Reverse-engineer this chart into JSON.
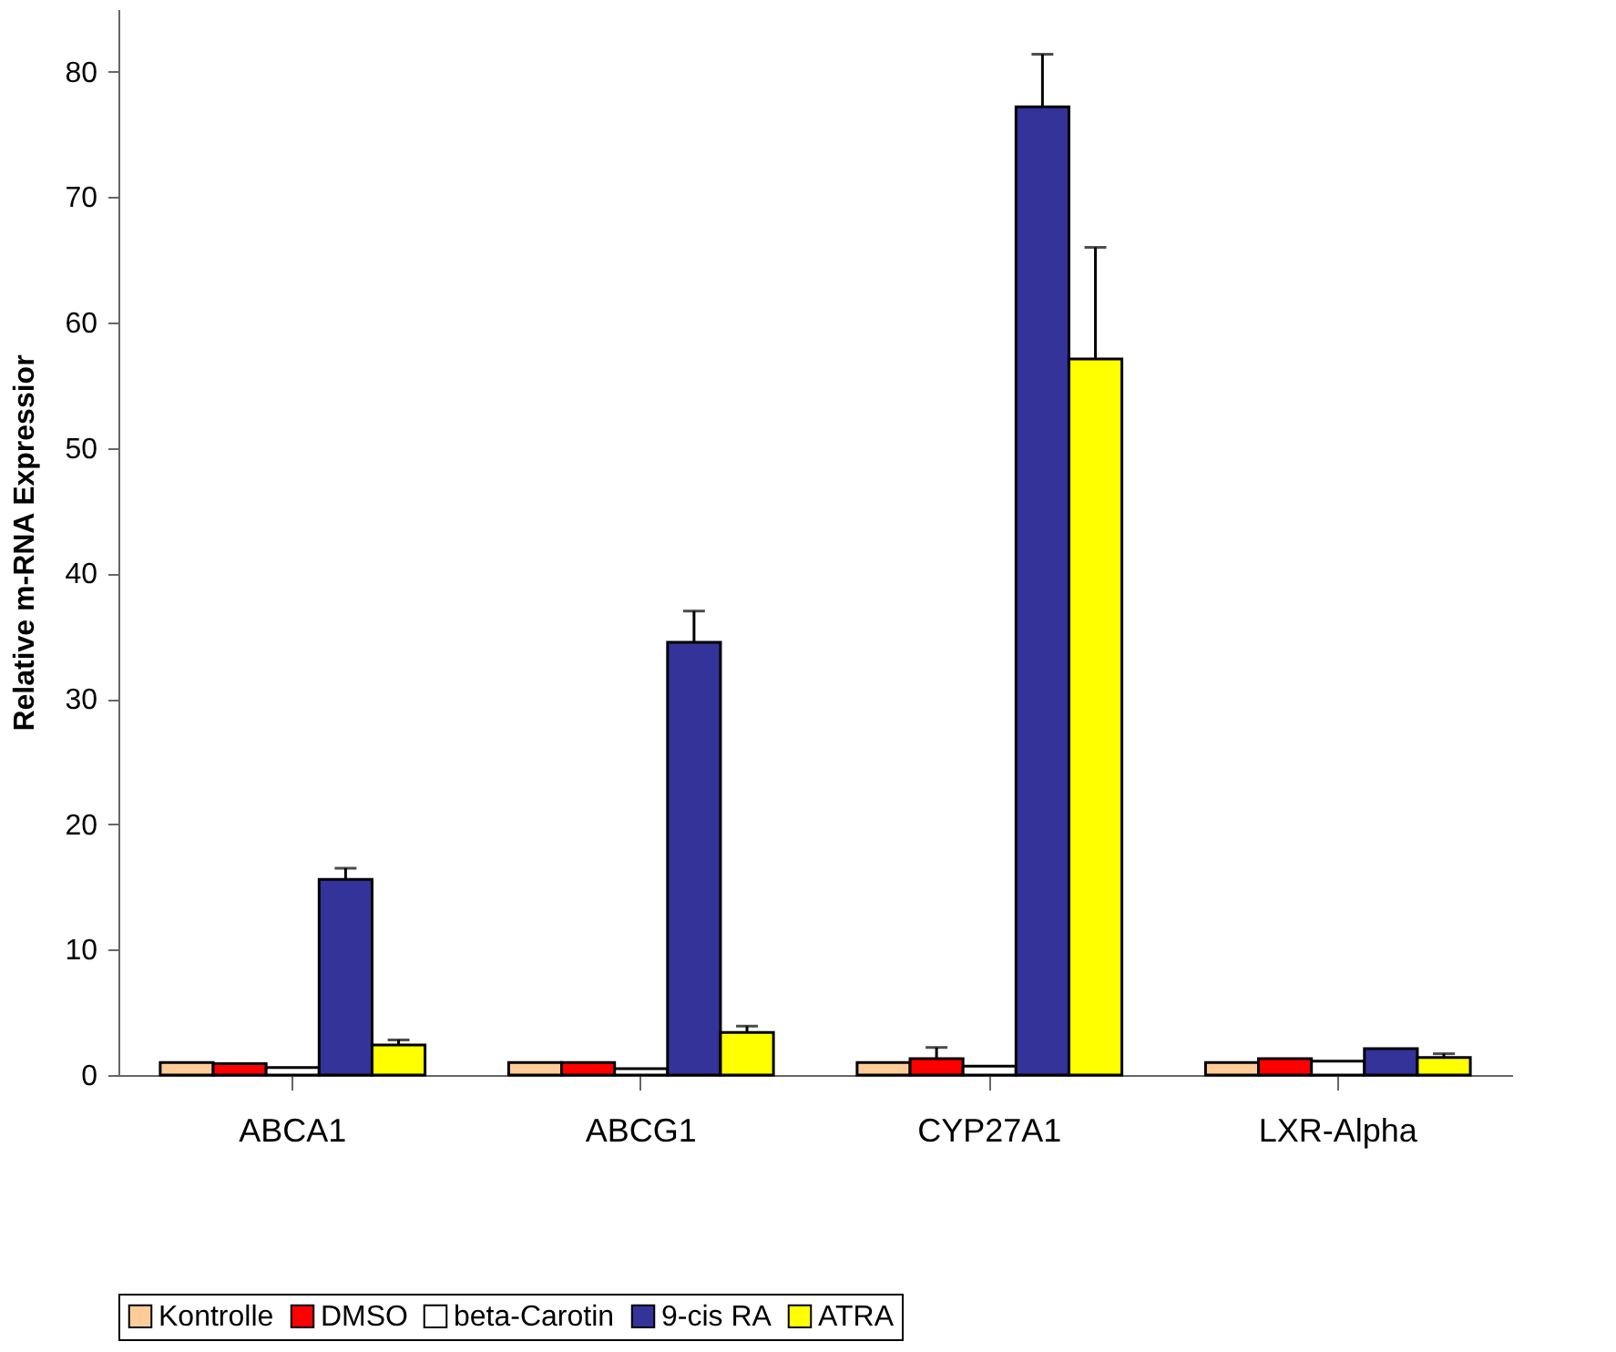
{
  "chart_data": {
    "type": "bar",
    "ylabel": "Relative m-RNA Expressior",
    "categories": [
      "ABCA1",
      "ABCG1",
      "CYP27A1",
      "LXR-Alpha"
    ],
    "series": [
      {
        "name": "Kontrolle",
        "color": "#ffcc99",
        "values": [
          1.0,
          1.0,
          1.0,
          1.0
        ]
      },
      {
        "name": "DMSO",
        "color": "#ff0000",
        "values": [
          0.9,
          1.0,
          1.3,
          1.3
        ],
        "errors": [
          null,
          null,
          [
            1.3,
            2.2
          ],
          null
        ]
      },
      {
        "name": "beta-Carotin",
        "color": "#ffffff",
        "values": [
          0.6,
          0.5,
          0.7,
          1.1
        ]
      },
      {
        "name": "9-cis RA",
        "color": "#333399",
        "values": [
          15.6,
          34.5,
          77.2,
          2.1
        ],
        "errors": [
          [
            15.6,
            16.5
          ],
          [
            34.5,
            37.0
          ],
          [
            77.2,
            81.4
          ],
          null
        ]
      },
      {
        "name": "ATRA",
        "color": "#ffff00",
        "values": [
          2.4,
          3.4,
          57.1,
          1.4
        ],
        "errors": [
          [
            2.4,
            2.8
          ],
          [
            3.4,
            3.9
          ],
          [
            57.1,
            66.0
          ],
          [
            1.4,
            1.7
          ]
        ]
      }
    ],
    "ylim": [
      0,
      85
    ],
    "yticks": [
      0,
      10,
      20,
      30,
      40,
      50,
      60,
      70,
      80
    ],
    "grid": false,
    "legend": "bottom"
  }
}
